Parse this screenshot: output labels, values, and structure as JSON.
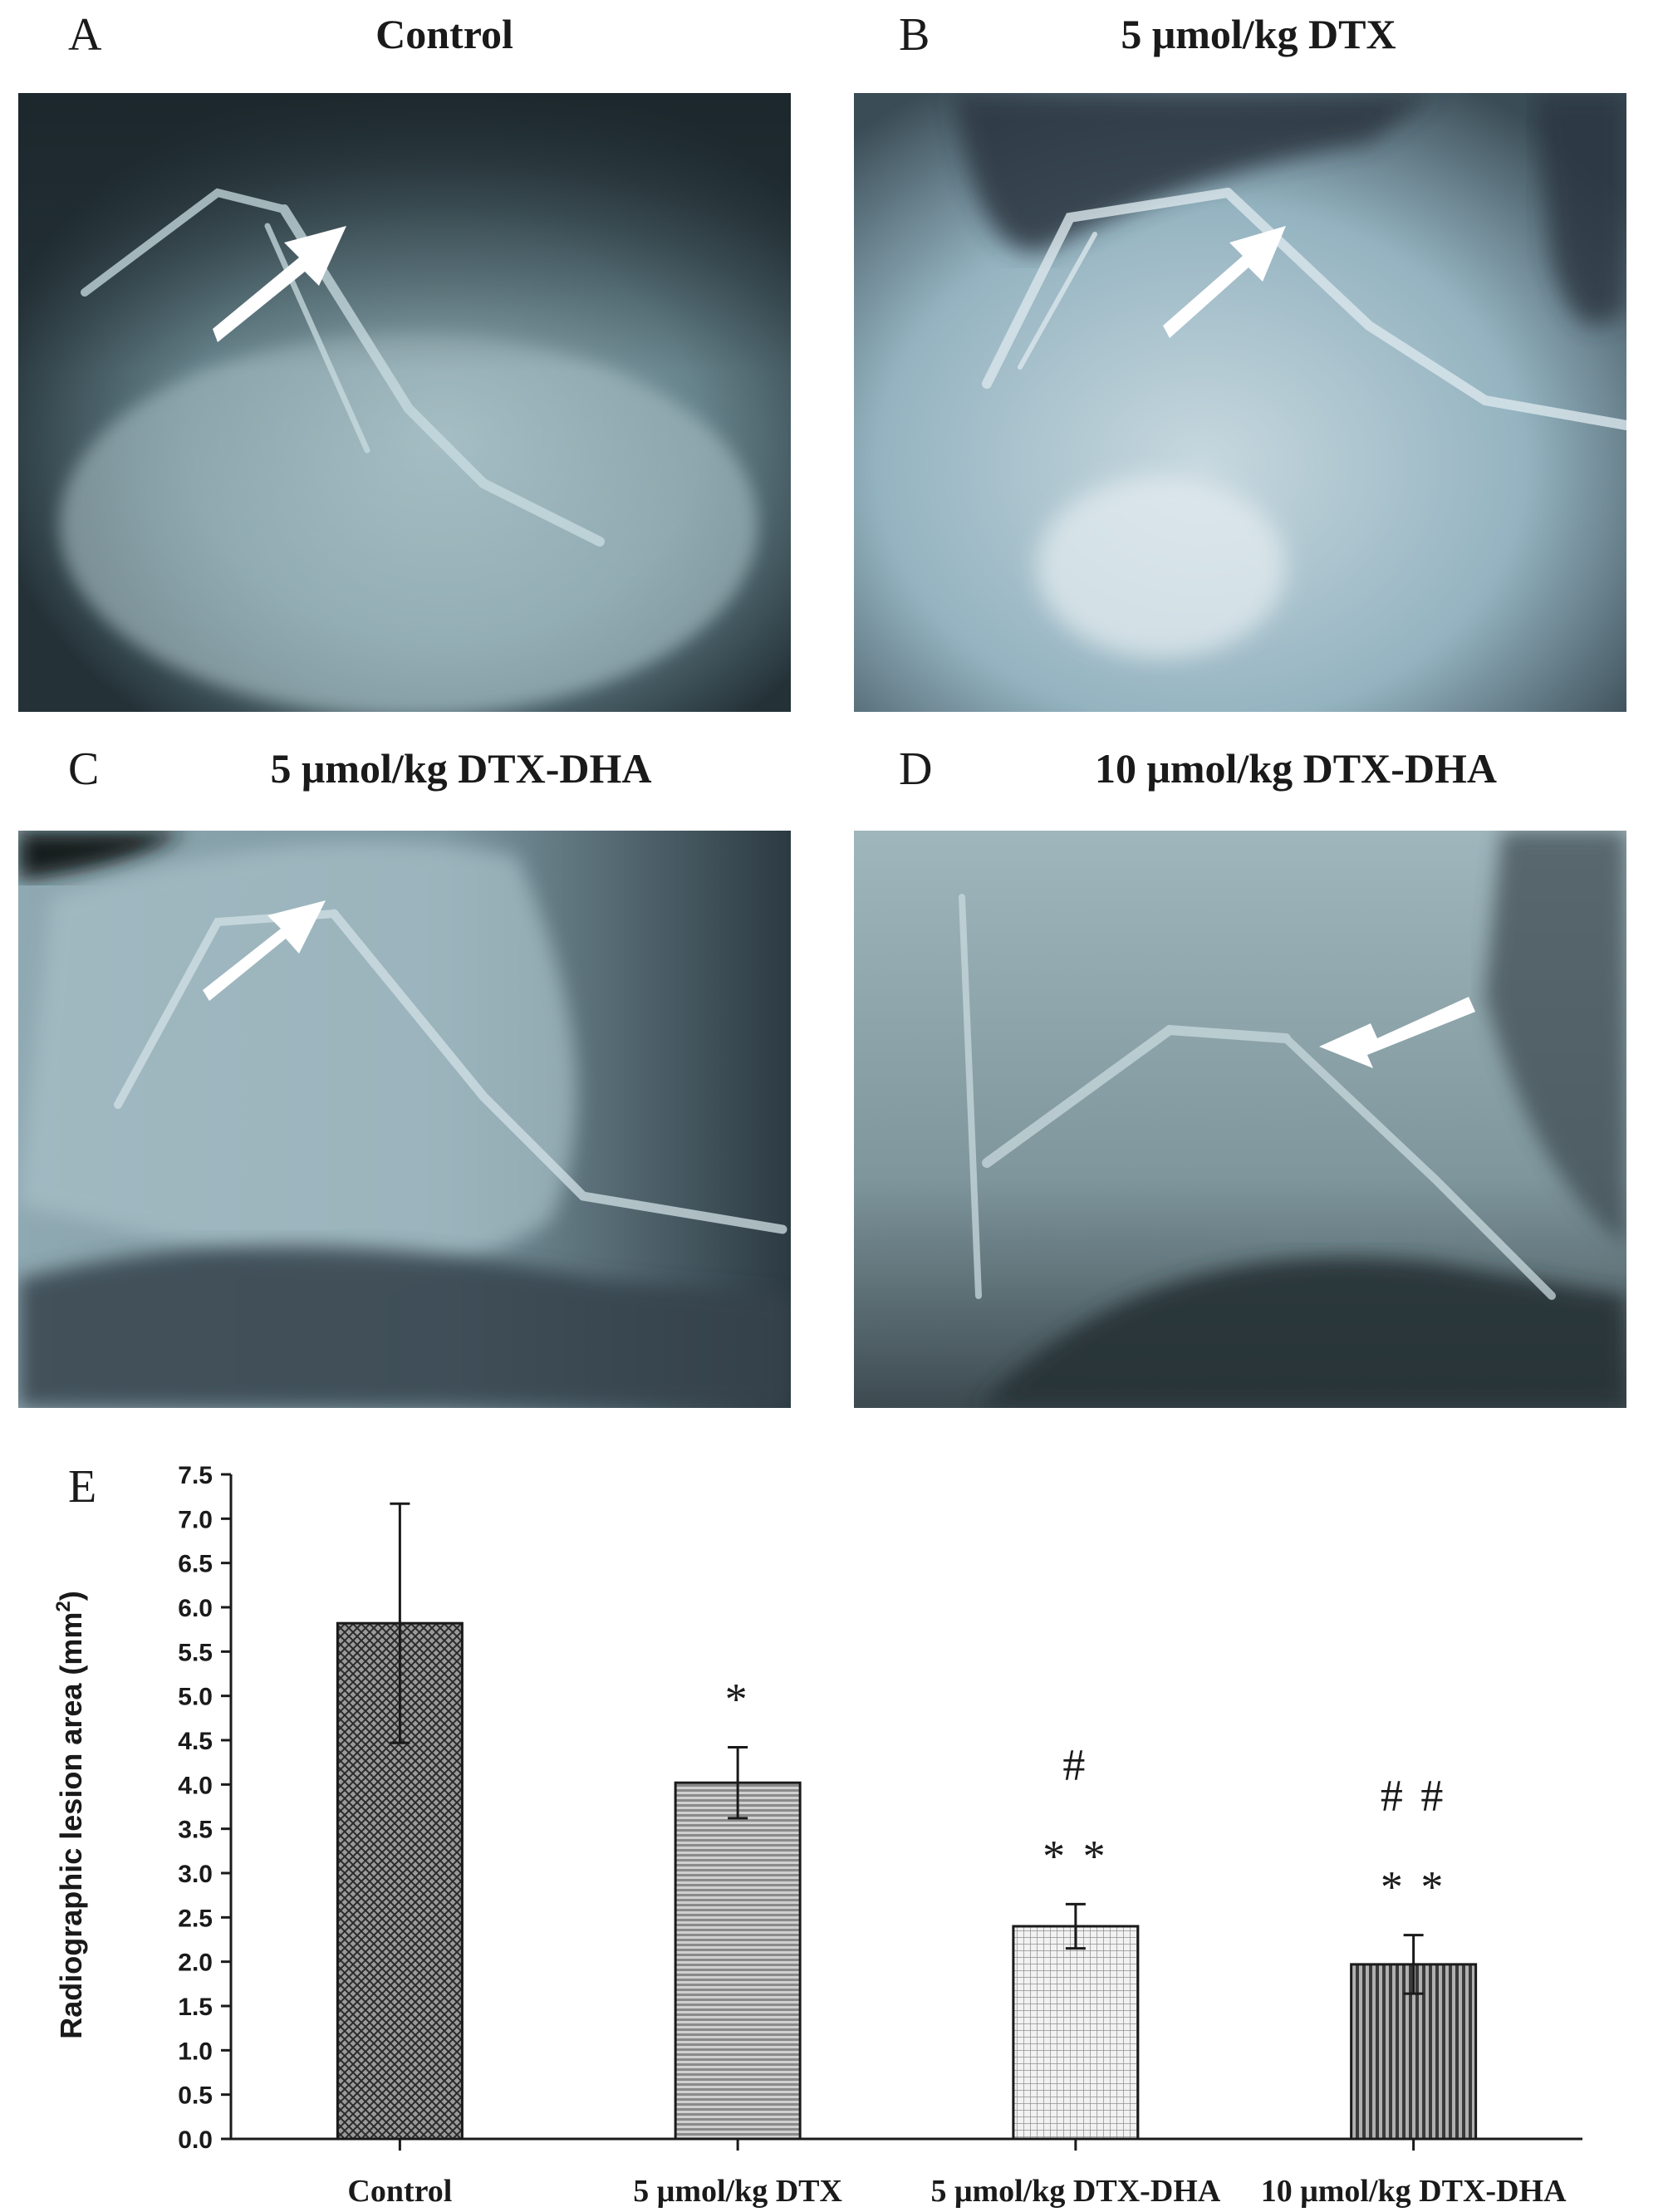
{
  "panels": [
    {
      "letter": "A",
      "title": "Control",
      "arrow_direction": "up-right"
    },
    {
      "letter": "B",
      "title": "5 μmol/kg DTX",
      "arrow_direction": "up-right"
    },
    {
      "letter": "C",
      "title": "5 μmol/kg DTX-DHA",
      "arrow_direction": "up-right"
    },
    {
      "letter": "D",
      "title": "10 μmol/kg DTX-DHA",
      "arrow_direction": "left"
    }
  ],
  "colors": {
    "xray_dark": "#1e2a30",
    "xray_mid": "#6f8e98",
    "xray_light": "#b9d2d8",
    "bar_edge": "#1a1a1a",
    "axis": "#1a1a1a"
  },
  "chart_data": {
    "type": "bar",
    "panel_letter": "E",
    "title": "",
    "xlabel": "",
    "ylabel": "Radiographic lesion area (mm",
    "ylabel_superscript": "2",
    "ylabel_close": ")",
    "ylim": [
      0,
      7.5
    ],
    "yticks": [
      "0.0",
      "0.5",
      "1.0",
      "1.5",
      "2.0",
      "2.5",
      "3.0",
      "3.5",
      "4.0",
      "4.5",
      "5.0",
      "5.5",
      "6.0",
      "6.5",
      "7.0",
      "7.5"
    ],
    "grid": false,
    "legend": "none",
    "categories": [
      "Control",
      "5 μmol/kg DTX",
      "5 μmol/kg DTX-DHA",
      "10 μmol/kg DTX-DHA"
    ],
    "values": [
      5.82,
      4.02,
      2.4,
      1.97
    ],
    "errors": [
      1.35,
      0.4,
      0.25,
      0.33
    ],
    "patterns": [
      "crosshatch",
      "horizontal-lines",
      "fine-grid",
      "vertical-lines"
    ],
    "annotations": [
      {
        "category_index": 1,
        "lines": [
          "*"
        ]
      },
      {
        "category_index": 2,
        "lines": [
          "#",
          "* *"
        ]
      },
      {
        "category_index": 3,
        "lines": [
          "# #",
          "* *"
        ]
      }
    ]
  }
}
